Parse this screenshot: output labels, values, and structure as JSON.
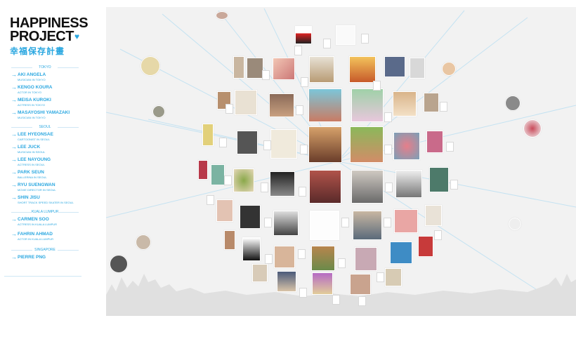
{
  "logo": {
    "line1": "HAPPINESS",
    "line2": "PROJECT",
    "kanji": "幸福保存計畫"
  },
  "groups": [
    {
      "title": "TOKYO",
      "people": [
        {
          "name": "AKI ANGELA",
          "role": "MUSICIAN IN TOKYO"
        },
        {
          "name": "KENGO KOURA",
          "role": "ACTOR IN TOKYO"
        },
        {
          "name": "MEISA KUROKI",
          "role": "ACTRESS IN TOKYO"
        },
        {
          "name": "MASAYOSHI YAMAZAKI",
          "role": "MUSICIAN IN TOKYO"
        }
      ]
    },
    {
      "title": "SEOUL",
      "people": [
        {
          "name": "LEE HYEONSAE",
          "role": "CARTOONIST IN SEOUL"
        },
        {
          "name": "LEE JUCK",
          "role": "MUSICIAN IN SEOUL"
        },
        {
          "name": "LEE NAYOUNG",
          "role": "ACTRESS IN SEOUL"
        },
        {
          "name": "PARK SEUN",
          "role": "BALLERINA IN SEOUL"
        },
        {
          "name": "RYU SUENGWAN",
          "role": "MOVIE DIRECTOR IN SEOUL"
        },
        {
          "name": "SHIN JISU",
          "role": "SHORT TRACK SPEED SKATER IN SEOUL"
        }
      ]
    },
    {
      "title": "KUALA LUMPUR",
      "people": [
        {
          "name": "CARMEN SOO",
          "role": "ACTRESS IN KUALA LUMPUR"
        },
        {
          "name": "FAHRIN AHMAD",
          "role": "ACTOR IN KUALA LUMPUR"
        }
      ]
    },
    {
      "title": "SINGAPORE",
      "people": [
        {
          "name": "PIERRE PNG",
          "role": ""
        }
      ]
    }
  ],
  "colors": {
    "accent": "#2aa7e0",
    "stage_bg": "#f2f2f2",
    "logo_text": "#111111"
  },
  "icons": {
    "heart": "heart-icon",
    "arrow": "arrow-right-icon"
  },
  "stage": {
    "tile_count": 68,
    "circle_count": 9
  }
}
